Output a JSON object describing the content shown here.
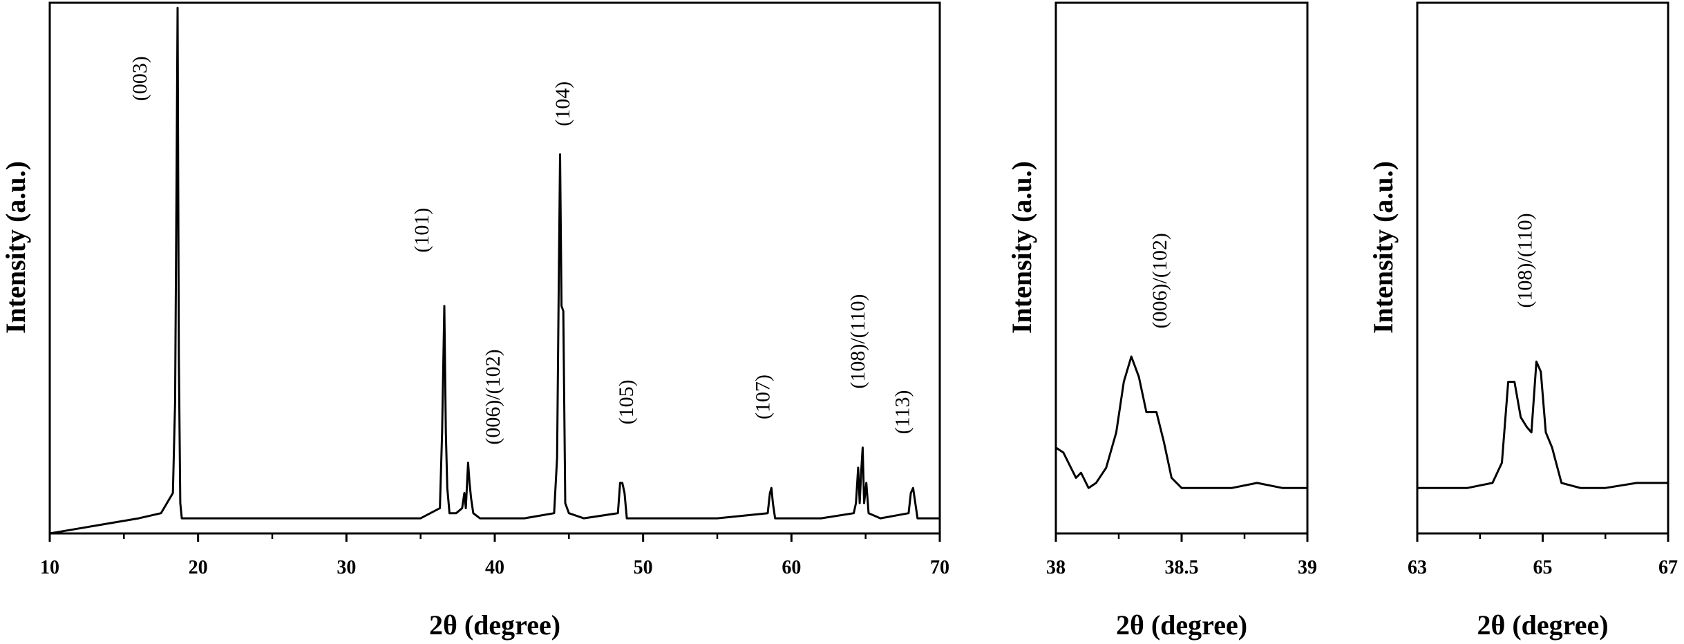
{
  "chart_data": [
    {
      "type": "line",
      "xlabel": "2θ (degree)",
      "ylabel": "Intensity (a.u.)",
      "xlim": [
        10,
        70
      ],
      "ylim": [
        0,
        1.05
      ],
      "xticks": [
        10,
        20,
        30,
        40,
        50,
        60,
        70
      ],
      "xtick_labels": [
        "10",
        "20",
        "30",
        "40",
        "50",
        "60",
        "70"
      ],
      "series": [
        {
          "x": [
            10,
            12,
            14,
            16,
            17.5,
            18.3,
            18.45,
            18.55,
            18.62,
            18.7,
            18.8,
            18.9,
            19.1,
            20,
            25,
            30,
            35,
            36.3,
            36.45,
            36.6,
            36.7,
            36.8,
            36.95,
            37.4,
            37.8,
            37.95,
            38.05,
            38.2,
            38.3,
            38.4,
            38.55,
            39,
            42,
            44,
            44.2,
            44.3,
            44.4,
            44.5,
            44.62,
            44.75,
            45,
            46,
            48.3,
            48.45,
            48.6,
            48.75,
            48.9,
            50,
            55,
            58.4,
            58.55,
            58.65,
            58.75,
            58.9,
            62,
            64.2,
            64.35,
            64.5,
            64.6,
            64.7,
            64.8,
            64.9,
            65.05,
            65.2,
            66,
            67.9,
            68.05,
            68.2,
            68.35,
            68.5,
            70
          ],
          "values": [
            0.0,
            0.01,
            0.02,
            0.03,
            0.04,
            0.08,
            0.26,
            0.7,
            1.04,
            0.35,
            0.06,
            0.03,
            0.03,
            0.03,
            0.03,
            0.03,
            0.03,
            0.05,
            0.2,
            0.45,
            0.2,
            0.09,
            0.04,
            0.04,
            0.05,
            0.08,
            0.05,
            0.14,
            0.1,
            0.07,
            0.04,
            0.03,
            0.03,
            0.04,
            0.15,
            0.45,
            0.75,
            0.45,
            0.44,
            0.06,
            0.04,
            0.03,
            0.04,
            0.1,
            0.1,
            0.08,
            0.03,
            0.03,
            0.03,
            0.04,
            0.08,
            0.09,
            0.06,
            0.03,
            0.03,
            0.04,
            0.06,
            0.13,
            0.06,
            0.12,
            0.17,
            0.06,
            0.1,
            0.04,
            0.03,
            0.04,
            0.08,
            0.09,
            0.06,
            0.03,
            0.03
          ]
        }
      ],
      "annotations": [
        {
          "text": "(003)",
          "x": 16.2,
          "y": 0.9
        },
        {
          "text": "(101)",
          "x": 35.2,
          "y": 0.6
        },
        {
          "text": "(006)/(102)",
          "x": 40.0,
          "y": 0.27
        },
        {
          "text": "(104)",
          "x": 44.7,
          "y": 0.85
        },
        {
          "text": "(105)",
          "x": 49.0,
          "y": 0.26
        },
        {
          "text": "(107)",
          "x": 58.2,
          "y": 0.27
        },
        {
          "text": "(108)/(110)",
          "x": 64.6,
          "y": 0.38
        },
        {
          "text": "(113)",
          "x": 67.6,
          "y": 0.24
        }
      ]
    },
    {
      "type": "line",
      "xlabel": "2θ (degree)",
      "ylabel": "Intensity (a.u.)",
      "xlim": [
        38,
        39
      ],
      "ylim": [
        0,
        1.05
      ],
      "xticks": [
        38,
        38.5,
        39
      ],
      "xtick_labels": [
        "38",
        "38.5",
        "39"
      ],
      "series": [
        {
          "x": [
            38.0,
            38.03,
            38.06,
            38.08,
            38.1,
            38.13,
            38.16,
            38.2,
            38.24,
            38.27,
            38.3,
            38.33,
            38.36,
            38.4,
            38.43,
            38.46,
            38.5,
            38.55,
            38.6,
            38.7,
            38.8,
            38.9,
            39.0
          ],
          "values": [
            0.17,
            0.16,
            0.13,
            0.11,
            0.12,
            0.09,
            0.1,
            0.13,
            0.2,
            0.3,
            0.35,
            0.31,
            0.24,
            0.24,
            0.18,
            0.11,
            0.09,
            0.09,
            0.09,
            0.09,
            0.1,
            0.09,
            0.09
          ]
        }
      ],
      "annotations": [
        {
          "text": "(006)/(102)",
          "x": 38.42,
          "y": 0.5
        }
      ]
    },
    {
      "type": "line",
      "xlabel": "2θ (degree)",
      "ylabel": "Intensity (a.u.)",
      "xlim": [
        63,
        67
      ],
      "ylim": [
        0,
        1.05
      ],
      "xticks": [
        63,
        65,
        67
      ],
      "xtick_labels": [
        "63",
        "65",
        "67"
      ],
      "series": [
        {
          "x": [
            63.0,
            63.8,
            64.2,
            64.35,
            64.45,
            64.55,
            64.65,
            64.75,
            64.82,
            64.9,
            64.97,
            65.05,
            65.15,
            65.3,
            65.6,
            66.0,
            66.5,
            67.0
          ],
          "values": [
            0.09,
            0.09,
            0.1,
            0.14,
            0.3,
            0.3,
            0.23,
            0.21,
            0.2,
            0.34,
            0.32,
            0.2,
            0.17,
            0.1,
            0.09,
            0.09,
            0.1,
            0.1
          ]
        }
      ],
      "annotations": [
        {
          "text": "(108)/(110)",
          "x": 64.75,
          "y": 0.54
        }
      ]
    }
  ]
}
